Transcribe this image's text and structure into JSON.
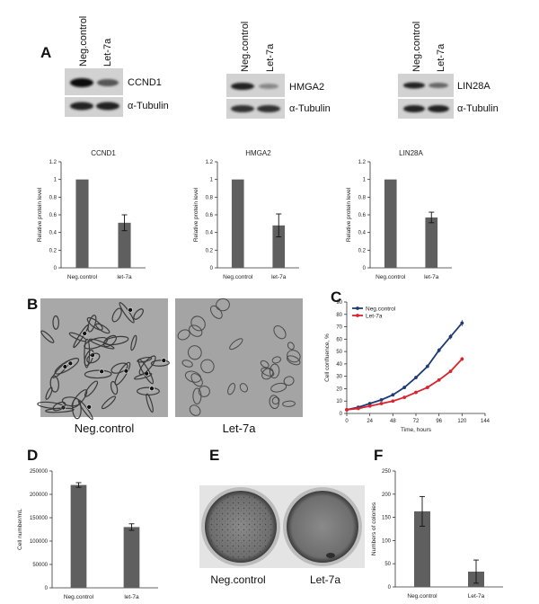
{
  "panel_labels": {
    "A": "A",
    "B": "B",
    "C": "C",
    "D": "D",
    "E": "E",
    "F": "F"
  },
  "blots": {
    "lane_labels": [
      "Neg.control",
      "Let-7a"
    ],
    "targets": [
      "CCND1",
      "HMGA2",
      "LIN28A"
    ],
    "loading_control": "α-Tubulin"
  },
  "images": {
    "b_captions": [
      "Neg.control",
      "Let-7a"
    ],
    "e_captions": [
      "Neg.control",
      "Let-7a"
    ]
  },
  "chart_data": [
    {
      "id": "ccnd1",
      "type": "bar",
      "title": "CCND1",
      "ylabel": "Relative protein level",
      "categories": [
        "Neg.control",
        "let-7a"
      ],
      "values": [
        1,
        0.51
      ],
      "errors": [
        0,
        0.09
      ],
      "ylim": [
        0,
        1.2
      ],
      "yticks": [
        "0",
        "0.2",
        "0.4",
        "0.6",
        "0.8",
        "1",
        "1.2"
      ]
    },
    {
      "id": "hmga2",
      "type": "bar",
      "title": "HMGA2",
      "ylabel": "Relative protein level",
      "categories": [
        "Neg.control",
        "let-7a"
      ],
      "values": [
        1,
        0.48
      ],
      "errors": [
        0,
        0.13
      ],
      "ylim": [
        0,
        1.2
      ],
      "yticks": [
        "0",
        "0.2",
        "0.4",
        "0.6",
        "0.8",
        "1",
        "1.2"
      ]
    },
    {
      "id": "lin28a",
      "type": "bar",
      "title": "LIN28A",
      "ylabel": "Relative protein level",
      "categories": [
        "Neg.control",
        "let-7a"
      ],
      "values": [
        1,
        0.57
      ],
      "errors": [
        0,
        0.06
      ],
      "ylim": [
        0,
        1.2
      ],
      "yticks": [
        "0",
        "0.2",
        "0.4",
        "0.6",
        "0.8",
        "1",
        "1.2"
      ]
    },
    {
      "id": "confluence",
      "type": "line",
      "title": "",
      "ylabel": "Cell confluence, %",
      "xlabel": "Time, hours",
      "x": [
        0,
        12,
        24,
        36,
        48,
        60,
        72,
        84,
        96,
        108,
        120
      ],
      "xlim": [
        0,
        144
      ],
      "xticks": [
        "0",
        "24",
        "48",
        "72",
        "96",
        "120",
        "144"
      ],
      "ylim": [
        0,
        90
      ],
      "yticks": [
        "0",
        "10",
        "20",
        "30",
        "40",
        "50",
        "60",
        "70",
        "80",
        "90"
      ],
      "series": [
        {
          "name": "Neg.control",
          "color": "#1f3b73",
          "values": [
            3,
            5,
            8,
            11,
            15,
            21,
            29,
            38,
            51,
            62,
            73
          ]
        },
        {
          "name": "Let-7a",
          "color": "#d9232e",
          "values": [
            3,
            4,
            6,
            8,
            10,
            13,
            17,
            21,
            27,
            34,
            44
          ]
        }
      ]
    },
    {
      "id": "cellnumber",
      "type": "bar",
      "title": "",
      "ylabel": "Cell number/mL",
      "categories": [
        "Neg.control",
        "let-7a"
      ],
      "values": [
        220000,
        130000
      ],
      "errors": [
        5000,
        7000
      ],
      "ylim": [
        0,
        250000
      ],
      "yticks": [
        "0",
        "50000",
        "100000",
        "150000",
        "200000",
        "250000"
      ]
    },
    {
      "id": "colonies",
      "type": "bar",
      "title": "",
      "ylabel": "Numbers of colonies",
      "categories": [
        "Neg.control",
        "Let-7a"
      ],
      "values": [
        163,
        33
      ],
      "errors": [
        32,
        25
      ],
      "ylim": [
        0,
        250
      ],
      "yticks": [
        "0",
        "50",
        "100",
        "150",
        "200",
        "250"
      ]
    }
  ]
}
